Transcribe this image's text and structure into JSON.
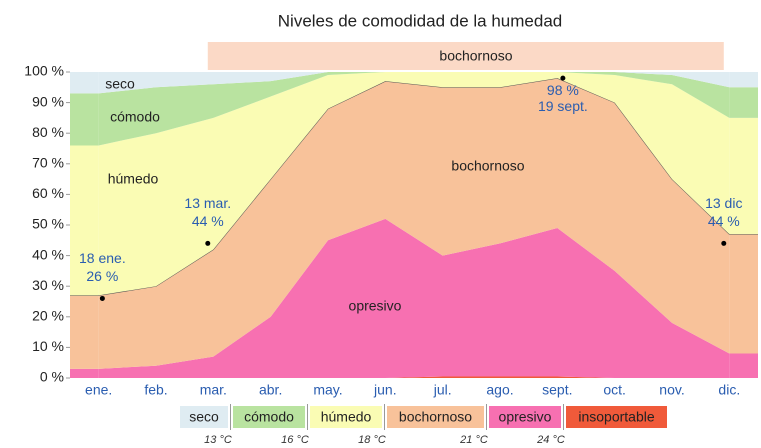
{
  "chart_data": {
    "type": "stacked_area",
    "title": "Niveles de comodidad de la humedad",
    "categories": [
      "ene.",
      "feb.",
      "mar.",
      "abr.",
      "may.",
      "jun.",
      "jul.",
      "ago.",
      "sept.",
      "oct.",
      "nov.",
      "dic."
    ],
    "series": [
      {
        "name": "insoportable",
        "color": "#f05a3a",
        "values": [
          0,
          0,
          0,
          0,
          0,
          0,
          0.5,
          0.5,
          0.5,
          0,
          0,
          0
        ]
      },
      {
        "name": "opresivo",
        "color": "#f770b1",
        "values": [
          3,
          4,
          7,
          20,
          45,
          52,
          39.5,
          43.5,
          48.5,
          35,
          18,
          8
        ]
      },
      {
        "name": "bochornoso",
        "color": "#f8c29a",
        "values": [
          24,
          26,
          35,
          45,
          43,
          45,
          55,
          51,
          49,
          55,
          47,
          39
        ]
      },
      {
        "name": "húmedo",
        "color": "#fafcb4",
        "values": [
          49,
          50,
          43,
          27,
          11,
          3,
          5,
          5,
          2,
          9,
          31,
          38
        ]
      },
      {
        "name": "cómodo",
        "color": "#b9e3a0",
        "values": [
          17,
          15,
          11,
          5,
          1,
          0,
          0,
          0,
          0,
          1,
          3,
          10
        ]
      },
      {
        "name": "seco",
        "color": "#dfecf2",
        "values": [
          7,
          5,
          4,
          3,
          0,
          0,
          0,
          0,
          0,
          0,
          1,
          5
        ]
      }
    ],
    "ylim": [
      0,
      100
    ],
    "yticks": [
      {
        "value": 0,
        "label": "0 %"
      },
      {
        "value": 10,
        "label": "10 %"
      },
      {
        "value": 20,
        "label": "20 %"
      },
      {
        "value": 30,
        "label": "30 %"
      },
      {
        "value": 40,
        "label": "40 %"
      },
      {
        "value": 50,
        "label": "50 %"
      },
      {
        "value": 60,
        "label": "60 %"
      },
      {
        "value": 70,
        "label": "70 %"
      },
      {
        "value": 80,
        "label": "80 %"
      },
      {
        "value": 90,
        "label": "90 %"
      },
      {
        "value": 100,
        "label": "100 %"
      }
    ],
    "grid": false,
    "annotations": [
      {
        "date": "18 ene.",
        "value": 26,
        "value_label": "26 %"
      },
      {
        "date": "13 mar.",
        "value": 44,
        "value_label": "44 %"
      },
      {
        "date": "19 sept.",
        "value": 98,
        "value_label": "98 %"
      },
      {
        "date": "13 dic",
        "value": 44,
        "value_label": "44 %"
      }
    ],
    "thresholds": [
      "13 °C",
      "16 °C",
      "18 °C",
      "21 °C",
      "24 °C"
    ]
  }
}
